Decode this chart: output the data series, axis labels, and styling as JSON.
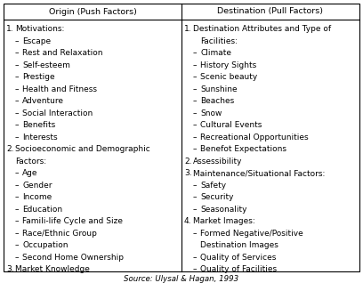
{
  "col_headers": [
    "Origin (Push Factors)",
    "Destination (Pull Factors)"
  ],
  "left_column": [
    {
      "type": "numbered",
      "num": "1.",
      "text": "Motivations:"
    },
    {
      "type": "bullet",
      "text": "Escape"
    },
    {
      "type": "bullet",
      "text": "Rest and Relaxation"
    },
    {
      "type": "bullet",
      "text": "Self-esteem"
    },
    {
      "type": "bullet",
      "text": "Prestige"
    },
    {
      "type": "bullet",
      "text": "Health and Fitness"
    },
    {
      "type": "bullet",
      "text": "Adventure"
    },
    {
      "type": "bullet",
      "text": "Social Interaction"
    },
    {
      "type": "bullet",
      "text": "Benefits"
    },
    {
      "type": "bullet",
      "text": "Interests"
    },
    {
      "type": "numbered",
      "num": "2.",
      "text": "Socioeconomic and Demographic"
    },
    {
      "type": "cont",
      "text": "Factors:"
    },
    {
      "type": "bullet",
      "text": "Age"
    },
    {
      "type": "bullet",
      "text": "Gender"
    },
    {
      "type": "bullet",
      "text": "Income"
    },
    {
      "type": "bullet",
      "text": "Education"
    },
    {
      "type": "bullet",
      "text": "Famili-life Cycle and Size"
    },
    {
      "type": "bullet",
      "text": "Race/Ethnic Group"
    },
    {
      "type": "bullet",
      "text": "Occupation"
    },
    {
      "type": "bullet",
      "text": "Second Home Ownership"
    },
    {
      "type": "numbered",
      "num": "3.",
      "text": "Market Knowledge"
    }
  ],
  "right_column": [
    {
      "type": "numbered",
      "num": "1.",
      "text": "Destination Attributes and Type of"
    },
    {
      "type": "cont",
      "text": "Facilities:"
    },
    {
      "type": "bullet",
      "text": "Climate"
    },
    {
      "type": "bullet",
      "text": "History Sights"
    },
    {
      "type": "bullet",
      "text": "Scenic beauty"
    },
    {
      "type": "bullet",
      "text": "Sunshine"
    },
    {
      "type": "bullet",
      "text": "Beaches"
    },
    {
      "type": "bullet",
      "text": "Snow"
    },
    {
      "type": "bullet",
      "text": "Cultural Events"
    },
    {
      "type": "bullet",
      "text": "Recreational Opportunities"
    },
    {
      "type": "bullet",
      "text": "Benefot Expectations"
    },
    {
      "type": "numbered",
      "num": "2.",
      "text": "Assessibility"
    },
    {
      "type": "numbered",
      "num": "3.",
      "text": "Maintenance/Situational Factors:"
    },
    {
      "type": "bullet",
      "text": "Safety"
    },
    {
      "type": "bullet",
      "text": "Security"
    },
    {
      "type": "bullet",
      "text": "Seasonality"
    },
    {
      "type": "numbered",
      "num": "4.",
      "text": "Market Images:"
    },
    {
      "type": "bullet",
      "text": "Formed Negative/Positive"
    },
    {
      "type": "cont2",
      "text": "Destination Images"
    },
    {
      "type": "bullet",
      "text": "Quality of Services"
    },
    {
      "type": "bullet",
      "text": "Quality of Facilities"
    }
  ],
  "source": "Source: Ulysal & Hagan, 1993",
  "bg_color": "#ffffff",
  "border_color": "#000000",
  "text_color": "#000000",
  "font_size": 6.5,
  "header_font_size": 6.8
}
